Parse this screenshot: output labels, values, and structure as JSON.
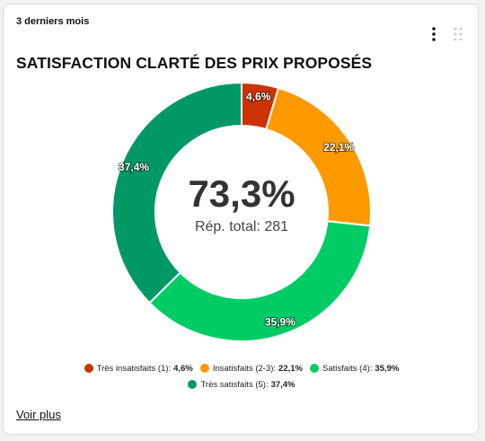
{
  "card": {
    "period": "3 derniers mois",
    "title": "SATISFACTION CLARTÉ DES PRIX PROPOSÉS",
    "more_link": "Voir plus",
    "menu_icon": "vertical-dots-icon",
    "drag_icon": "drag-handle-icon"
  },
  "chart_data": {
    "type": "pie",
    "variant": "donut",
    "categories": [
      "Très insatisfaits (1)",
      "Insatisfaits (2-3)",
      "Satisfaits (4)",
      "Très satisfaits (5)"
    ],
    "values": [
      4.6,
      22.1,
      35.9,
      37.4
    ],
    "labels": [
      "4,6%",
      "22,1%",
      "35,9%",
      "37,4%"
    ],
    "legend_values": [
      "4,6%",
      "22,1%",
      "35,9%",
      "37,4%"
    ],
    "colors": [
      "#cc3300",
      "#ff9900",
      "#00cc66",
      "#009966"
    ],
    "center_value": "73,3%",
    "center_subtitle": "Rép. total: 281",
    "legend_position": "bottom"
  }
}
